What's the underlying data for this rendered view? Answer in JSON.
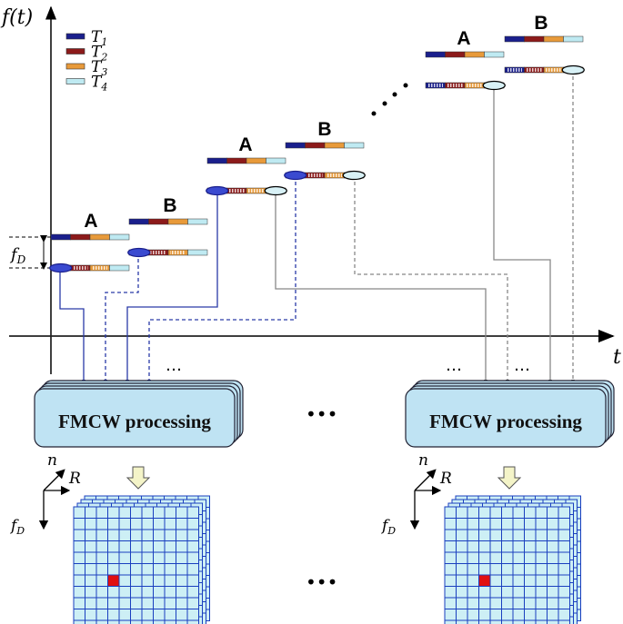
{
  "axes": {
    "y_label": "f(t)",
    "x_label": "t"
  },
  "legend": [
    {
      "label": "T",
      "sub": "1",
      "color": "#1a1f8c"
    },
    {
      "label": "T",
      "sub": "2",
      "color": "#8c1a1a"
    },
    {
      "label": "T",
      "sub": "3",
      "color": "#e89a3a"
    },
    {
      "label": "T",
      "sub": "4",
      "color": "#bfeaf2"
    }
  ],
  "doppler_label": {
    "main": "f",
    "sub": "D"
  },
  "groups": [
    {
      "label": "A"
    },
    {
      "label": "B"
    },
    {
      "label": "A"
    },
    {
      "label": "B"
    },
    {
      "label": "A"
    },
    {
      "label": "B"
    }
  ],
  "ellipsis": "…",
  "big_ellipsis": "•••",
  "processing": {
    "label": "FMCW  processing"
  },
  "triad": {
    "n": "n",
    "R": "R",
    "fD_main": "f",
    "fD_sub": "D"
  },
  "colors": {
    "box_fill": "#bfe3f3",
    "grid_fill": "#cdeff5",
    "grid_line": "#1a3fbf",
    "target": "#e01010",
    "signal_line": "#2a3aa8",
    "gray_line": "#888888"
  }
}
